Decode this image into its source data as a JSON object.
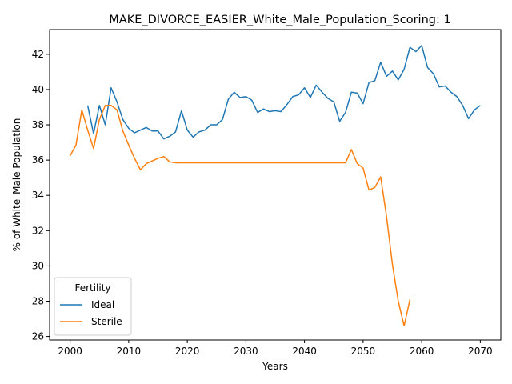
{
  "chart_data": {
    "type": "line",
    "title": "MAKE_DIVORCE_EASIER_White_Male_Population_Scoring: 1",
    "xlabel": "Years",
    "ylabel": "% of White_Male Population",
    "xlim": [
      1996.5,
      2073.5
    ],
    "ylim": [
      25.8,
      43.4
    ],
    "xticks": [
      2000,
      2010,
      2020,
      2030,
      2040,
      2050,
      2060,
      2070
    ],
    "yticks": [
      26,
      28,
      30,
      32,
      34,
      36,
      38,
      40,
      42
    ],
    "grid": false,
    "legend": {
      "title": "Fertility",
      "placement": "lower-left"
    },
    "series": [
      {
        "name": "Ideal",
        "color": "#1f77b4",
        "x": [
          2003,
          2004,
          2005,
          2006,
          2007,
          2008,
          2009,
          2010,
          2011,
          2012,
          2013,
          2014,
          2015,
          2016,
          2017,
          2018,
          2019,
          2020,
          2021,
          2022,
          2023,
          2024,
          2025,
          2026,
          2027,
          2028,
          2029,
          2030,
          2031,
          2032,
          2033,
          2034,
          2035,
          2036,
          2037,
          2038,
          2039,
          2040,
          2041,
          2042,
          2043,
          2044,
          2045,
          2046,
          2047,
          2048,
          2049,
          2050,
          2051,
          2052,
          2053,
          2054,
          2055,
          2056,
          2057,
          2058,
          2059,
          2060,
          2061,
          2062,
          2063,
          2064,
          2065,
          2066,
          2067,
          2068,
          2069,
          2070
        ],
        "y": [
          39.1,
          37.5,
          39.1,
          38.0,
          40.1,
          39.3,
          38.3,
          37.8,
          37.55,
          37.7,
          37.85,
          37.65,
          37.65,
          37.2,
          37.35,
          37.6,
          38.8,
          37.7,
          37.3,
          37.6,
          37.7,
          38.0,
          38.0,
          38.3,
          39.45,
          39.85,
          39.55,
          39.6,
          39.4,
          38.7,
          38.9,
          38.75,
          38.8,
          38.75,
          39.15,
          39.6,
          39.7,
          40.1,
          39.55,
          40.25,
          39.85,
          39.5,
          39.3,
          38.2,
          38.7,
          39.85,
          39.8,
          39.2,
          40.4,
          40.5,
          41.55,
          40.75,
          41.05,
          40.55,
          41.15,
          42.4,
          42.15,
          42.5,
          41.25,
          40.9,
          40.15,
          40.2,
          39.85,
          39.6,
          39.1,
          38.35,
          38.85,
          39.1
        ]
      },
      {
        "name": "Sterile",
        "color": "#ff7f0e",
        "x": [
          2000,
          2001,
          2002,
          2003,
          2004,
          2005,
          2006,
          2007,
          2008,
          2009,
          2010,
          2011,
          2012,
          2013,
          2014,
          2015,
          2016,
          2017,
          2018,
          2019,
          2020,
          2021,
          2022,
          2023,
          2024,
          2025,
          2026,
          2027,
          2028,
          2029,
          2030,
          2031,
          2032,
          2033,
          2034,
          2035,
          2036,
          2037,
          2038,
          2039,
          2040,
          2041,
          2042,
          2043,
          2044,
          2045,
          2046,
          2047,
          2048,
          2049,
          2050,
          2051,
          2052,
          2053,
          2054,
          2055,
          2056,
          2057,
          2058
        ],
        "y": [
          36.25,
          36.85,
          38.85,
          37.7,
          36.65,
          38.3,
          39.1,
          39.1,
          38.85,
          37.65,
          36.85,
          36.1,
          35.45,
          35.8,
          35.95,
          36.1,
          36.2,
          35.9,
          35.85,
          35.85,
          35.85,
          35.85,
          35.85,
          35.85,
          35.85,
          35.85,
          35.85,
          35.85,
          35.85,
          35.85,
          35.85,
          35.85,
          35.85,
          35.85,
          35.85,
          35.85,
          35.85,
          35.85,
          35.85,
          35.85,
          35.85,
          35.85,
          35.85,
          35.85,
          35.85,
          35.85,
          35.85,
          35.85,
          36.6,
          35.8,
          35.55,
          34.3,
          34.45,
          35.05,
          32.8,
          30.1,
          28.0,
          26.6,
          28.1
        ]
      }
    ]
  }
}
